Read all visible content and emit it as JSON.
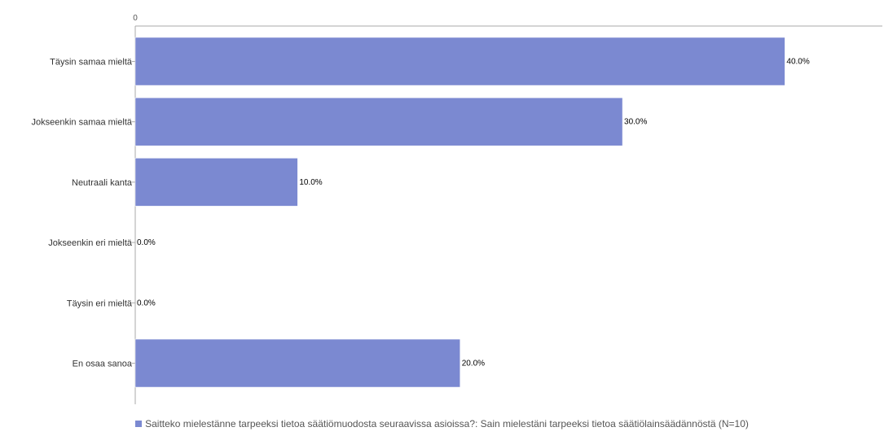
{
  "chart_data": {
    "type": "bar",
    "orientation": "horizontal",
    "categories": [
      "Täysin samaa mieltä",
      "Jokseenkin samaa mieltä",
      "Neutraali kanta",
      "Jokseenkin eri mieltä",
      "Täysin eri mieltä",
      "En osaa sanoa"
    ],
    "series": [
      {
        "name": "Saitteko mielestänne tarpeeksi tietoa säätiömuodosta seuraavissa asioissa?: Sain mielestäni tarpeeksi tietoa säätiölainsäädännöstä (N=10)",
        "values": [
          40.0,
          30.0,
          10.0,
          0.0,
          0.0,
          20.0
        ],
        "labels": [
          "40.0%",
          "30.0%",
          "10.0%",
          "0.0%",
          "0.0%",
          "20.0%"
        ],
        "color": "#7b89d1"
      }
    ],
    "x_axis": {
      "ticks": [
        "0"
      ],
      "min": 0,
      "max": 46
    },
    "grid": false,
    "legend_position": "bottom",
    "colors": {
      "bar": "#7b89d1",
      "axis": "#aaaaaa"
    }
  }
}
